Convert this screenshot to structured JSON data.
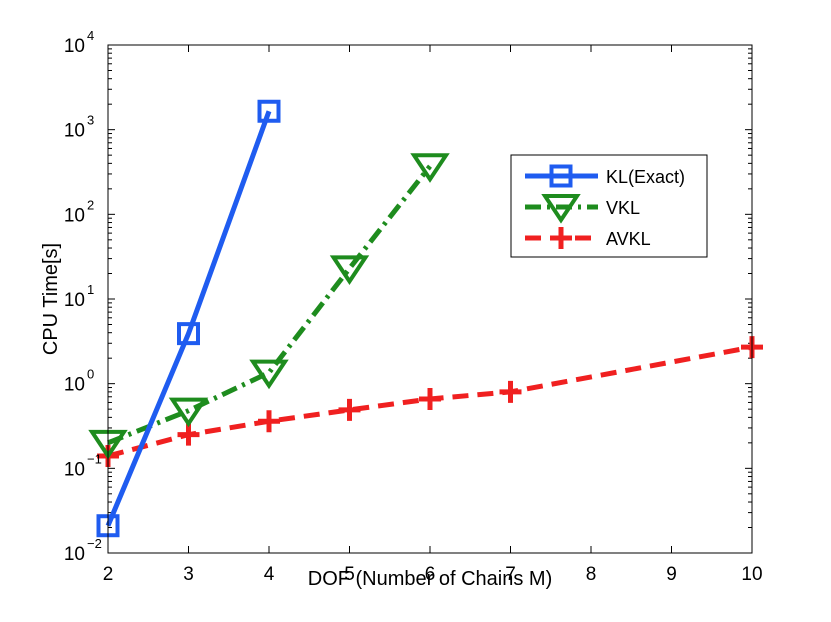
{
  "chart_data": {
    "type": "line",
    "title": "",
    "xlabel": "DOF (Number of Chains M)",
    "ylabel": "CPU Time[s]",
    "xlim": [
      2,
      10
    ],
    "ylim": [
      0.01,
      10000
    ],
    "yscale": "log",
    "xticks": [
      "2",
      "3",
      "4",
      "5",
      "6",
      "7",
      "8",
      "9",
      "10"
    ],
    "yticks": [
      {
        "base": "10",
        "exp": "−2",
        "value": 0.01
      },
      {
        "base": "10",
        "exp": "−1",
        "value": 0.1
      },
      {
        "base": "10",
        "exp": "0",
        "value": 1
      },
      {
        "base": "10",
        "exp": "1",
        "value": 10
      },
      {
        "base": "10",
        "exp": "2",
        "value": 100
      },
      {
        "base": "10",
        "exp": "3",
        "value": 1000
      },
      {
        "base": "10",
        "exp": "4",
        "value": 10000
      }
    ],
    "legend_position": "upper-right",
    "series": [
      {
        "name": "KL(Exact)",
        "color": "#1f5cf0",
        "marker": "square",
        "style": "solid",
        "x": [
          2,
          3,
          4
        ],
        "values": [
          0.021,
          3.9,
          1650
        ]
      },
      {
        "name": "VKL",
        "color": "#1e8c1e",
        "marker": "triangle-down",
        "style": "dashdot",
        "x": [
          2,
          3,
          4,
          5,
          6
        ],
        "values": [
          0.2,
          0.48,
          1.35,
          23,
          370
        ]
      },
      {
        "name": "AVKL",
        "color": "#f02020",
        "marker": "plus",
        "style": "dashed",
        "x": [
          2,
          3,
          4,
          5,
          6,
          7,
          10
        ],
        "values": [
          0.14,
          0.25,
          0.36,
          0.49,
          0.66,
          0.8,
          2.7
        ]
      }
    ]
  }
}
